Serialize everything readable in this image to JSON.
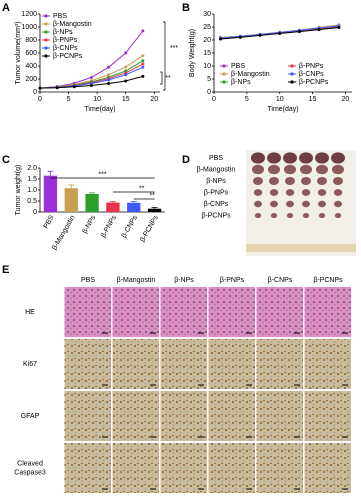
{
  "panels": {
    "letters": [
      "A",
      "B",
      "C",
      "D",
      "E"
    ]
  },
  "chart_data": [
    {
      "type": "line",
      "ylabel": "Tumor volume(mm³)",
      "xlabel": "Time(day)",
      "x": [
        0,
        3,
        6,
        9,
        12,
        15,
        18
      ],
      "xlim": [
        0,
        21
      ],
      "xticks": [
        0,
        5,
        10,
        15,
        20
      ],
      "ylim": [
        0,
        1200
      ],
      "yticks": [
        0,
        200,
        400,
        600,
        800,
        1000,
        1200
      ],
      "legend": "upper left",
      "series": [
        {
          "name": "PBS",
          "color": "#9b30d9",
          "values": [
            60,
            85,
            135,
            225,
            380,
            600,
            940
          ]
        },
        {
          "name": "β-Mangostin",
          "color": "#c8a050",
          "values": [
            60,
            78,
            115,
            175,
            265,
            385,
            560
          ]
        },
        {
          "name": "β-NPs",
          "color": "#2ca02c",
          "values": [
            60,
            74,
            105,
            155,
            225,
            325,
            480
          ]
        },
        {
          "name": "β-PNPs",
          "color": "#e8334a",
          "values": [
            60,
            72,
            98,
            142,
            205,
            295,
            430
          ]
        },
        {
          "name": "β-CNPs",
          "color": "#3d5afe",
          "values": [
            60,
            70,
            92,
            132,
            185,
            265,
            380
          ]
        },
        {
          "name": "β-PCNPs",
          "color": "#000000",
          "values": [
            60,
            65,
            80,
            100,
            130,
            170,
            240
          ]
        }
      ],
      "annotations": [
        "***",
        "**"
      ]
    },
    {
      "type": "line",
      "ylabel": "Body Weight(g)",
      "xlabel": "Time(day)",
      "x": [
        1,
        4,
        7,
        10,
        13,
        16,
        19
      ],
      "xlim": [
        0,
        21
      ],
      "xticks": [
        0,
        5,
        10,
        15,
        20
      ],
      "ylim": [
        0,
        30
      ],
      "yticks": [
        0,
        5,
        10,
        15,
        20,
        25,
        30
      ],
      "legend": "lower center",
      "series": [
        {
          "name": "PBS",
          "color": "#9b30d9",
          "values": [
            20.5,
            21.2,
            22,
            22.8,
            23.5,
            24.5,
            25.5
          ]
        },
        {
          "name": "β-Mangostin",
          "color": "#c8a050",
          "values": [
            21,
            21.5,
            22.2,
            23,
            23.8,
            24.8,
            25.8
          ]
        },
        {
          "name": "β-NPs",
          "color": "#2ca02c",
          "values": [
            20.8,
            21.3,
            22,
            22.8,
            23.6,
            24.5,
            25.3
          ]
        },
        {
          "name": "β-PNPs",
          "color": "#e8334a",
          "values": [
            20.6,
            21.2,
            21.9,
            22.6,
            23.4,
            24.2,
            25
          ]
        },
        {
          "name": "β-CNPs",
          "color": "#3d5afe",
          "values": [
            20.7,
            21.4,
            22.1,
            22.9,
            23.7,
            24.6,
            25.4
          ]
        },
        {
          "name": "β-PCNPs",
          "color": "#000000",
          "values": [
            20.4,
            21,
            21.8,
            22.5,
            23.2,
            24,
            24.8
          ]
        }
      ]
    },
    {
      "type": "bar",
      "ylabel": "Tumor weight(g)",
      "categories": [
        "PBS",
        "β-Mangostin",
        "β-NPs",
        "β-PNPs",
        "β-CNPs",
        "β-PCNPs"
      ],
      "values": [
        1.65,
        1.08,
        0.82,
        0.43,
        0.42,
        0.15
      ],
      "errors": [
        0.2,
        0.15,
        0.05,
        0.04,
        0.05,
        0.06
      ],
      "colors": [
        "#9b30d9",
        "#c8a050",
        "#2ca02c",
        "#e8334a",
        "#3d5afe",
        "#000000"
      ],
      "ylim": [
        0,
        2.0
      ],
      "yticks": [
        0,
        {
          "value": 0.5,
          "label": "0.5"
        },
        {
          "value": 1.0,
          "label": "1.0"
        },
        {
          "value": 1.5,
          "label": "1.5"
        },
        {
          "value": 2.0,
          "label": "2.0"
        }
      ],
      "annotations": [
        "***",
        "**",
        "**"
      ]
    }
  ],
  "panel_d": {
    "labels": [
      "PBS",
      "β-Mangostin",
      "β-NPs",
      "β-PNPs",
      "β-CNPs",
      "β-PCNPs"
    ]
  },
  "panel_e": {
    "columns": [
      "PBS",
      "β-Mangostin",
      "β-NPs",
      "β-PNPs",
      "β-CNPs",
      "β-PCNPs"
    ],
    "rows": [
      [
        "HE"
      ],
      [
        "Ki67"
      ],
      [
        "GFAP"
      ],
      [
        "Cleaved",
        "Caspase3"
      ]
    ]
  }
}
